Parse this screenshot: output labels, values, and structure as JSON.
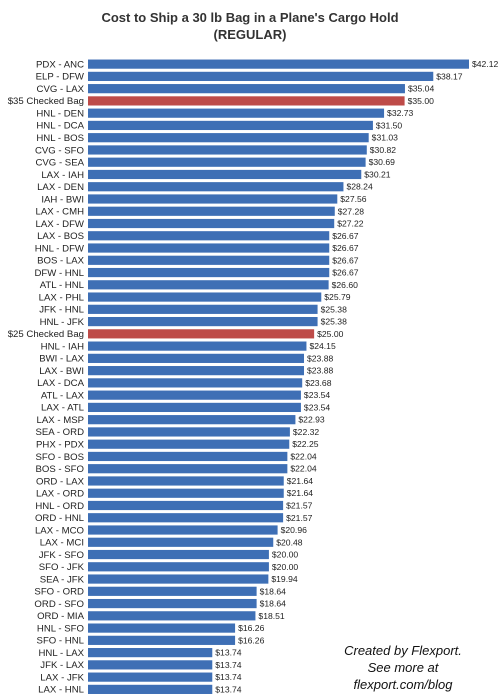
{
  "chart_data": {
    "type": "bar",
    "orientation": "horizontal",
    "title": "Cost to Ship a 30 lb Bag in a Plane's Cargo Hold",
    "subtitle": "(REGULAR)",
    "xlabel": "",
    "ylabel": "",
    "xlim": [
      0,
      42.12
    ],
    "grid": false,
    "legend": "none",
    "categories": [
      "PDX - ANC",
      "ELP - DFW",
      "CVG - LAX",
      "$35 Checked Bag",
      "HNL - DEN",
      "HNL - DCA",
      "HNL - BOS",
      "CVG - SFO",
      "CVG - SEA",
      "LAX - IAH",
      "LAX - DEN",
      "IAH - BWI",
      "LAX - CMH",
      "LAX - DFW",
      "LAX - BOS",
      "HNL - DFW",
      "BOS - LAX",
      "DFW - HNL",
      "ATL - HNL",
      "LAX - PHL",
      "JFK - HNL",
      "HNL - JFK",
      "$25 Checked Bag",
      "HNL - IAH",
      "BWI - LAX",
      "LAX - BWI",
      "LAX - DCA",
      "ATL - LAX",
      "LAX - ATL",
      "LAX - MSP",
      "SEA - ORD",
      "PHX - PDX",
      "SFO - BOS",
      "BOS - SFO",
      "ORD - LAX",
      "LAX - ORD",
      "HNL - ORD",
      "ORD - HNL",
      "LAX - MCO",
      "LAX - MCI",
      "JFK - SFO",
      "SFO - JFK",
      "SEA - JFK",
      "SFO - ORD",
      "ORD - SFO",
      "ORD - MIA",
      "HNL - SFO",
      "SFO - HNL",
      "HNL - LAX",
      "JFK - LAX",
      "LAX - JFK",
      "LAX - HNL"
    ],
    "values": [
      42.12,
      38.17,
      35.04,
      35.0,
      32.73,
      31.5,
      31.03,
      30.82,
      30.69,
      30.21,
      28.24,
      27.56,
      27.28,
      27.22,
      26.67,
      26.67,
      26.67,
      26.67,
      26.6,
      25.79,
      25.38,
      25.38,
      25.0,
      24.15,
      23.88,
      23.88,
      23.68,
      23.54,
      23.54,
      22.93,
      22.32,
      22.25,
      22.04,
      22.04,
      21.64,
      21.64,
      21.57,
      21.57,
      20.96,
      20.48,
      20.0,
      20.0,
      19.94,
      18.64,
      18.64,
      18.51,
      16.26,
      16.26,
      13.74,
      13.74,
      13.74,
      13.74
    ],
    "value_labels": [
      "$42.12",
      "$38.17",
      "$35.04",
      "$35.00",
      "$32.73",
      "$31.50",
      "$31.03",
      "$30.82",
      "$30.69",
      "$30.21",
      "$28.24",
      "$27.56",
      "$27.28",
      "$27.22",
      "$26.67",
      "$26.67",
      "$26.67",
      "$26.67",
      "$26.60",
      "$25.79",
      "$25.38",
      "$25.38",
      "$25.00",
      "$24.15",
      "$23.88",
      "$23.88",
      "$23.68",
      "$23.54",
      "$23.54",
      "$22.93",
      "$22.32",
      "$22.25",
      "$22.04",
      "$22.04",
      "$21.64",
      "$21.64",
      "$21.57",
      "$21.57",
      "$20.96",
      "$20.48",
      "$20.00",
      "$20.00",
      "$19.94",
      "$18.64",
      "$18.64",
      "$18.51",
      "$16.26",
      "$16.26",
      "$13.74",
      "$13.74",
      "$13.74",
      "$13.74"
    ],
    "highlight_categories": [
      "$35 Checked Bag",
      "$25 Checked Bag"
    ],
    "colors": {
      "bar": "#3e6fb5",
      "highlight": "#be4b48"
    }
  },
  "credit": {
    "line1": "Created by Flexport.",
    "line2": "See more at",
    "line3": "flexport.com/blog"
  }
}
